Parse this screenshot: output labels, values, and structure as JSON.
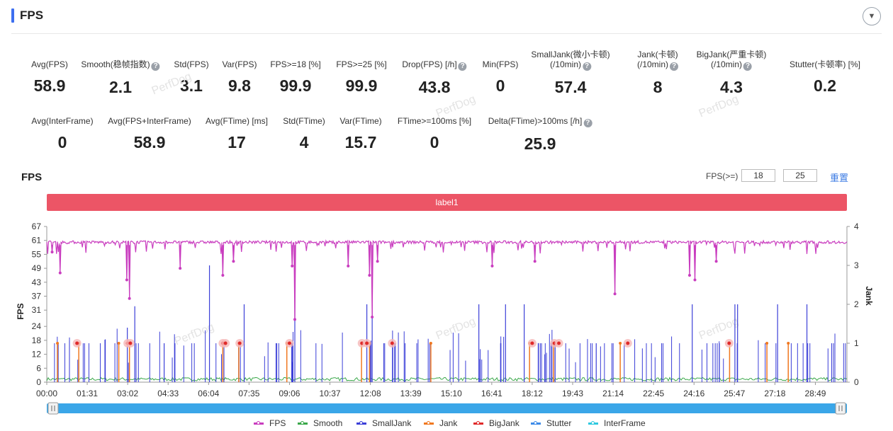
{
  "header": {
    "title": "FPS",
    "collapse_icon": "chevron-down-icon"
  },
  "stats_row1": [
    {
      "label": "Avg(FPS)",
      "value": "58.9",
      "help": false
    },
    {
      "label": "Smooth(稳帧指数)",
      "value": "2.1",
      "help": true
    },
    {
      "label": "Std(FPS)",
      "value": "3.1",
      "help": false
    },
    {
      "label": "Var(FPS)",
      "value": "9.8",
      "help": false
    },
    {
      "label": "FPS>=18 [%]",
      "value": "99.9",
      "help": false
    },
    {
      "label": "FPS>=25 [%]",
      "value": "99.9",
      "help": false
    },
    {
      "label": "Drop(FPS) [/h]",
      "value": "43.8",
      "help": true
    },
    {
      "label": "Min(FPS)",
      "value": "0",
      "help": false
    },
    {
      "label": "SmallJank(微小卡顿)",
      "label2": "(/10min)",
      "value": "57.4",
      "help": true
    },
    {
      "label": "Jank(卡顿)",
      "label2": "(/10min)",
      "value": "8",
      "help": true
    },
    {
      "label": "BigJank(严重卡顿)",
      "label2": "(/10min)",
      "value": "4.3",
      "help": true
    },
    {
      "label": "Stutter(卡顿率) [%]",
      "value": "0.2",
      "help": false
    }
  ],
  "stats_row2": [
    {
      "label": "Avg(InterFrame)",
      "value": "0",
      "help": false
    },
    {
      "label": "Avg(FPS+InterFrame)",
      "value": "58.9",
      "help": false
    },
    {
      "label": "Avg(FTime) [ms]",
      "value": "17",
      "help": false
    },
    {
      "label": "Std(FTime)",
      "value": "4",
      "help": false
    },
    {
      "label": "Var(FTime)",
      "value": "15.7",
      "help": false
    },
    {
      "label": "FTime>=100ms [%]",
      "value": "0",
      "help": false
    },
    {
      "label": "Delta(FTime)>100ms [/h]",
      "value": "25.9",
      "help": true
    }
  ],
  "watermark": "PerfDog",
  "chart_section": {
    "title": "FPS",
    "threshold_label": "FPS(>=)",
    "threshold1": "18",
    "threshold2": "25",
    "reset_label": "重置",
    "band_label": "label1"
  },
  "chart_data": {
    "type": "line",
    "ylabel": "FPS",
    "y2label": "Jank",
    "y_ticks": [
      "0",
      "6",
      "12",
      "18",
      "24",
      "31",
      "37",
      "43",
      "49",
      "55",
      "61",
      "67"
    ],
    "ylim": [
      0,
      67
    ],
    "y2_ticks": [
      "0",
      "1",
      "2",
      "3",
      "4"
    ],
    "y2lim": [
      0,
      4
    ],
    "x_ticks": [
      "00:00",
      "01:31",
      "03:02",
      "04:33",
      "06:04",
      "07:35",
      "09:06",
      "10:37",
      "12:08",
      "13:39",
      "15:10",
      "16:41",
      "18:12",
      "19:43",
      "21:14",
      "22:45",
      "24:16",
      "25:47",
      "27:18",
      "28:49"
    ],
    "fps_baseline": 60,
    "fps_dips": [
      [
        0.2,
        56
      ],
      [
        0.5,
        47
      ],
      [
        3.1,
        36
      ],
      [
        3.0,
        44
      ],
      [
        5.0,
        49
      ],
      [
        6.6,
        46
      ],
      [
        7.0,
        52
      ],
      [
        9.3,
        27
      ],
      [
        9.2,
        50
      ],
      [
        11.3,
        50
      ],
      [
        12.2,
        28
      ],
      [
        12.1,
        46
      ],
      [
        12.4,
        52
      ],
      [
        16.7,
        50
      ],
      [
        18.3,
        52
      ],
      [
        21.3,
        38
      ],
      [
        24.1,
        46
      ],
      [
        24.3,
        44
      ],
      [
        25.1,
        52
      ]
    ],
    "bigjank_x": [
      "01:08",
      "03:02",
      "03:08",
      "06:36",
      "06:42",
      "07:14",
      "09:06",
      "11:49",
      "12:00",
      "12:57",
      "18:12",
      "19:02",
      "19:12",
      "21:47",
      "25:35"
    ],
    "series": [
      {
        "name": "FPS",
        "color": "#c93dbf"
      },
      {
        "name": "Smooth",
        "color": "#3aa84a"
      },
      {
        "name": "SmallJank",
        "color": "#3b3fd8"
      },
      {
        "name": "Jank",
        "color": "#f07820"
      },
      {
        "name": "BigJank",
        "color": "#e02a2a"
      },
      {
        "name": "Stutter",
        "color": "#3d8be8"
      },
      {
        "name": "InterFrame",
        "color": "#2ec9e0"
      }
    ]
  }
}
